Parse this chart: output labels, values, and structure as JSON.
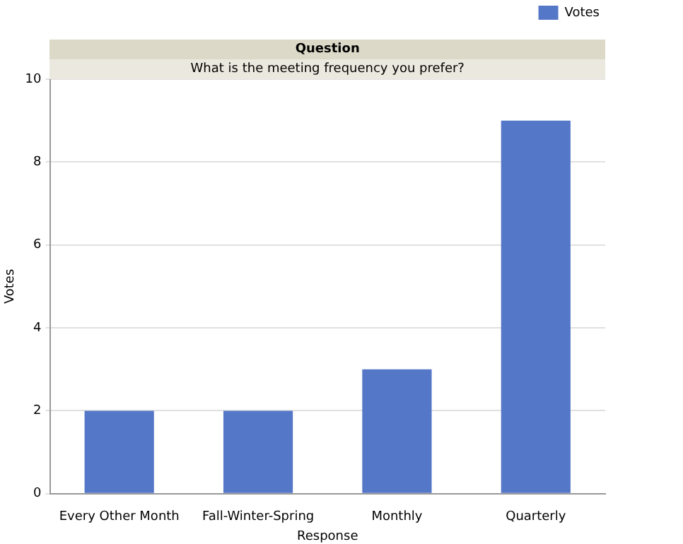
{
  "chart_data": {
    "type": "bar",
    "title": "Question",
    "subtitle": "What is the meeting frequency you prefer?",
    "xlabel": "Response",
    "ylabel": "Votes",
    "categories": [
      "Every Other Month",
      "Fall-Winter-Spring",
      "Monthly",
      "Quarterly"
    ],
    "series": [
      {
        "name": "Votes",
        "color": "#5577c8",
        "values": [
          2,
          2,
          3,
          9
        ]
      }
    ],
    "ylim": [
      0,
      10
    ],
    "yticks": [
      0,
      2,
      4,
      6,
      8,
      10
    ],
    "grid": "y",
    "legend": "top right"
  }
}
